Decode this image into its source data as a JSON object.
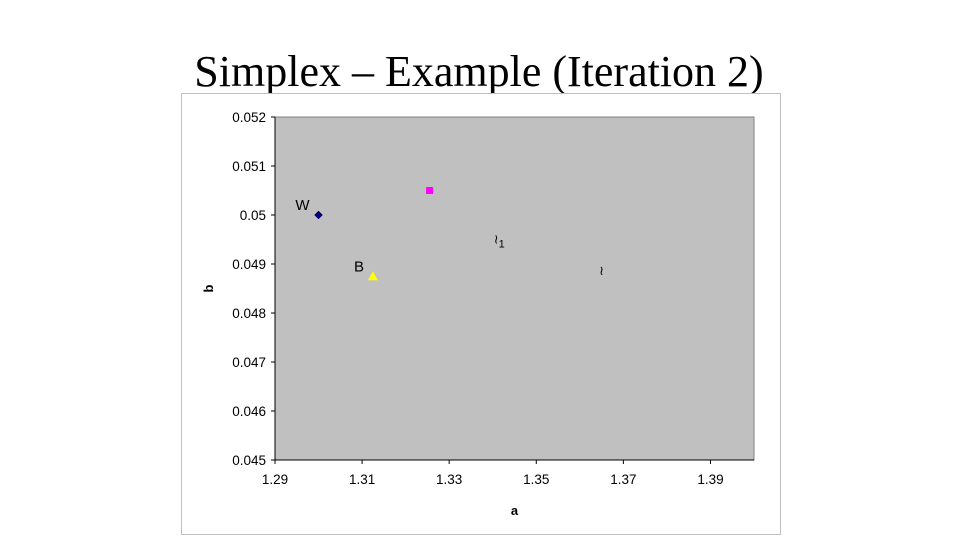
{
  "slide": {
    "title": "Simplex – Example (Iteration 2)"
  },
  "chart_data": {
    "type": "scatter",
    "xlabel": "a",
    "ylabel": "b",
    "xlim": [
      1.29,
      1.4
    ],
    "ylim": [
      0.045,
      0.052
    ],
    "x_ticks": [
      "1.29",
      "1.31",
      "1.33",
      "1.35",
      "1.37",
      "1.39"
    ],
    "y_ticks": [
      "0.045",
      "0.046",
      "0.047",
      "0.048",
      "0.049",
      "0.05",
      "0.051",
      "0.052"
    ],
    "plot_background": "#c0c0c0",
    "grid": false,
    "legend": "none",
    "points": [
      {
        "label": "W",
        "x": 1.3,
        "y": 0.05,
        "marker": "diamond",
        "color": "#000080"
      },
      {
        "label": "",
        "x": 1.3255,
        "y": 0.0505,
        "marker": "square",
        "color": "#ff00ff"
      },
      {
        "label": "B",
        "x": 1.3125,
        "y": 0.04875,
        "marker": "triangle",
        "color": "#ffff00"
      }
    ],
    "annotations": [
      {
        "text": "≀",
        "subscript": "1",
        "x": 1.3415,
        "y": 0.04942
      },
      {
        "text": "≀",
        "subscript": "",
        "x": 1.365,
        "y": 0.04878
      }
    ]
  }
}
